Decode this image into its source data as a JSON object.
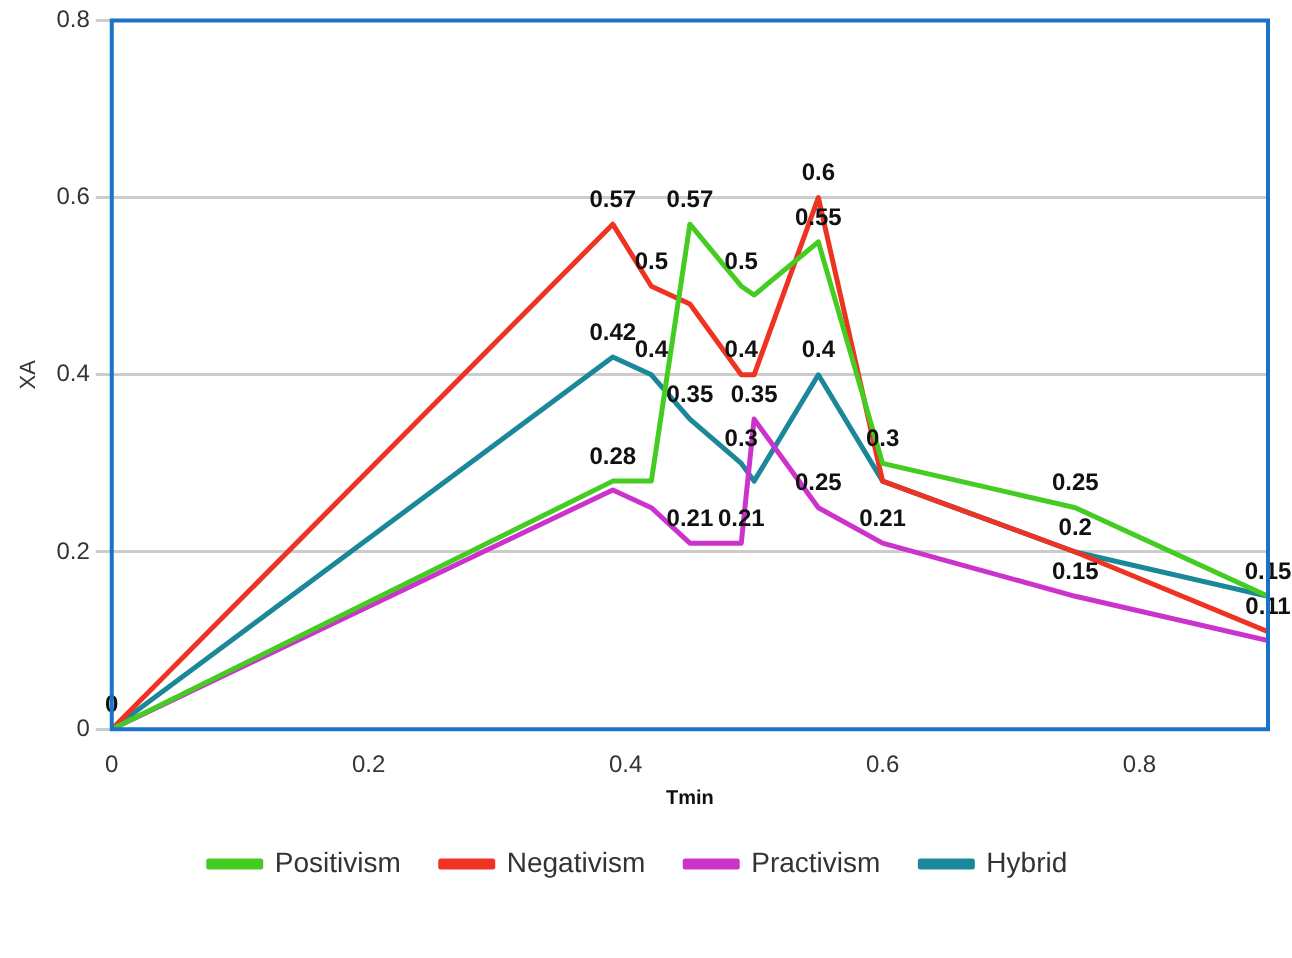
{
  "chart_data": {
    "type": "line",
    "xlabel": "Tmin",
    "ylabel": "XA",
    "x": [
      0,
      0.39,
      0.42,
      0.45,
      0.49,
      0.5,
      0.55,
      0.6,
      0.75,
      0.9
    ],
    "series": [
      {
        "name": "Positivism",
        "color": "#44cc22",
        "values": [
          0,
          0.28,
          0.28,
          0.57,
          0.5,
          0.49,
          0.55,
          0.3,
          0.25,
          0.15
        ],
        "value_labels": [
          "0",
          "0.28",
          null,
          "0.57",
          "0.5",
          null,
          "0.55",
          "0.3",
          "0.25",
          "0.15"
        ]
      },
      {
        "name": "Negativism",
        "color": "#ee3322",
        "values": [
          0,
          0.57,
          0.5,
          0.48,
          0.4,
          0.4,
          0.6,
          0.28,
          0.2,
          0.11
        ],
        "value_labels": [
          null,
          "0.57",
          "0.5",
          null,
          "0.4",
          null,
          "0.6",
          null,
          null,
          "0.11"
        ]
      },
      {
        "name": "Practivism",
        "color": "#cc33cc",
        "values": [
          0,
          0.27,
          0.25,
          0.21,
          0.21,
          0.35,
          0.25,
          0.21,
          0.15,
          0.1
        ],
        "value_labels": [
          null,
          null,
          null,
          "0.21",
          "0.21",
          "0.35",
          "0.25",
          "0.21",
          "0.15",
          null
        ]
      },
      {
        "name": "Hybrid",
        "color": "#1a8899",
        "values": [
          0,
          0.42,
          0.4,
          0.35,
          0.3,
          0.28,
          0.4,
          0.28,
          0.2,
          0.15
        ],
        "value_labels": [
          null,
          "0.42",
          "0.4",
          "0.35",
          "0.3",
          null,
          "0.4",
          null,
          "0.2",
          null
        ]
      }
    ],
    "xlim": [
      0,
      0.9
    ],
    "xticks": [
      0,
      0.2,
      0.4,
      0.6,
      0.8
    ],
    "ylim": [
      0,
      0.8
    ],
    "yticks": [
      0,
      0.2,
      0.4,
      0.6,
      0.8
    ],
    "grid": "y",
    "legend": "bottom",
    "marker": "none",
    "line_style": "solid"
  }
}
